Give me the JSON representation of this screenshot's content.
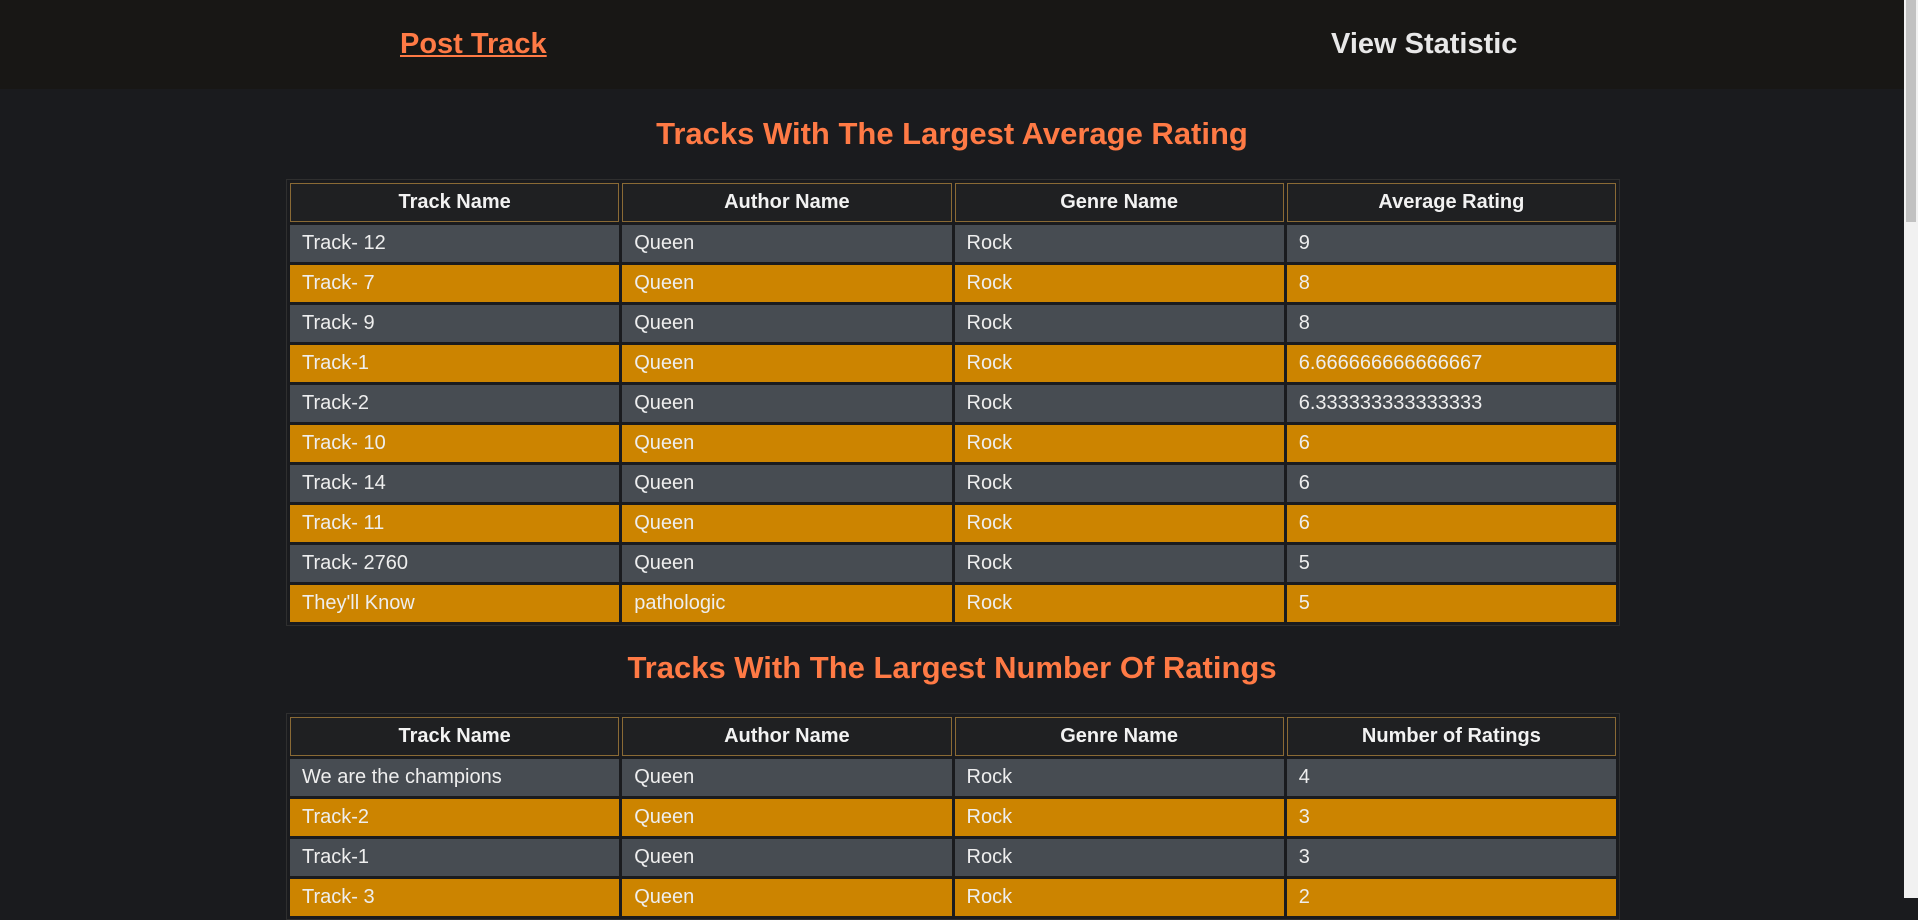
{
  "nav": {
    "post_track": "Post Track",
    "view_statistic": "View Statistic"
  },
  "section1": {
    "title": "Tracks With The Largest Average Rating",
    "columns": [
      "Track Name",
      "Author Name",
      "Genre Name",
      "Average Rating"
    ],
    "rows": [
      [
        "Track- 12",
        "Queen",
        "Rock",
        "9"
      ],
      [
        "Track- 7",
        "Queen",
        "Rock",
        "8"
      ],
      [
        "Track- 9",
        "Queen",
        "Rock",
        "8"
      ],
      [
        "Track-1",
        "Queen",
        "Rock",
        "6.666666666666667"
      ],
      [
        "Track-2",
        "Queen",
        "Rock",
        "6.333333333333333"
      ],
      [
        "Track- 10",
        "Queen",
        "Rock",
        "6"
      ],
      [
        "Track- 14",
        "Queen",
        "Rock",
        "6"
      ],
      [
        "Track- 11",
        "Queen",
        "Rock",
        "6"
      ],
      [
        "Track- 2760",
        "Queen",
        "Rock",
        "5"
      ],
      [
        "They'll Know",
        "pathologic",
        "Rock",
        "5"
      ]
    ]
  },
  "section2": {
    "title": "Tracks With The Largest Number Of Ratings",
    "columns": [
      "Track Name",
      "Author Name",
      "Genre Name",
      "Number of Ratings"
    ],
    "rows": [
      [
        "We are the champions",
        "Queen",
        "Rock",
        "4"
      ],
      [
        "Track-2",
        "Queen",
        "Rock",
        "3"
      ],
      [
        "Track-1",
        "Queen",
        "Rock",
        "3"
      ],
      [
        "Track- 3",
        "Queen",
        "Rock",
        "2"
      ]
    ]
  },
  "colors": {
    "accent": "#ff7a45",
    "row_dark": "#474c52",
    "row_orange": "#cc8400",
    "nav_bg": "#181715",
    "page_bg": "#1a1b1e"
  }
}
